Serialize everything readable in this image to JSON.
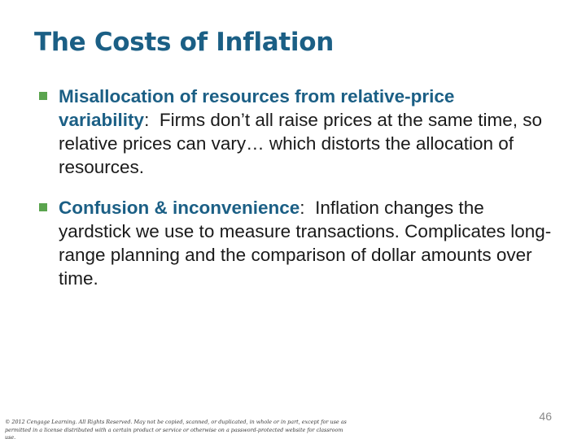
{
  "slide": {
    "title": "The Costs of Inflation",
    "bullets": [
      {
        "term_part1": "Misallocation of resources from relative-price",
        "term_part2": "variability",
        "colon": ":",
        "text": "Firms don’t all raise prices at the same time, so relative prices can vary… which distorts the allocation of resources."
      },
      {
        "term": "Confusion & inconvenience",
        "colon": ":",
        "text": "Inflation changes the yardstick we use to measure transactions. Complicates long-range planning and the comparison of dollar amounts over time."
      }
    ],
    "footer": {
      "copyright": "© 2012 Cengage Learning. All Rights Reserved. May not be copied, scanned, or duplicated, in whole or in part, except for use as permitted in a license distributed with a certain product or service or otherwise on a password-protected website for classroom use.",
      "page_number": "46"
    },
    "colors": {
      "title": "#1b5f85",
      "bullet_marker": "#5aa44e",
      "body_text": "#1a1a1a"
    }
  }
}
